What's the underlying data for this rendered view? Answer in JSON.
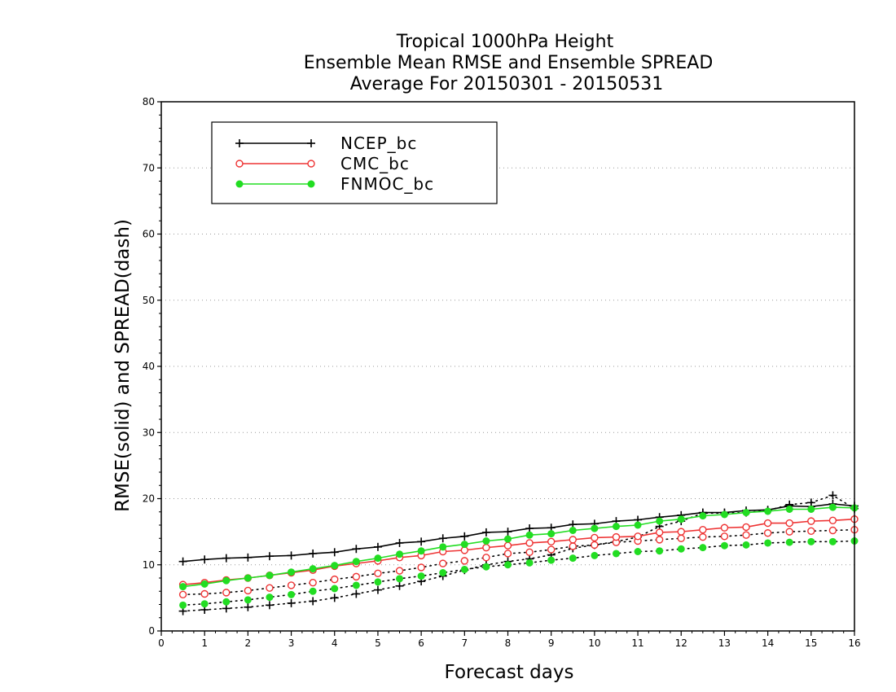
{
  "chart_data": {
    "type": "line",
    "title": [
      "Tropical 1000hPa Height",
      "Ensemble Mean RMSE and Ensemble SPREAD",
      "Average For 20150301 - 20150531"
    ],
    "xlabel": "Forecast days",
    "ylabel": "RMSE(solid) and SPREAD(dash)",
    "xlim": [
      0,
      16
    ],
    "ylim": [
      0,
      80
    ],
    "xticks": [
      "0",
      "1",
      "2",
      "3",
      "4",
      "5",
      "6",
      "7",
      "8",
      "9",
      "10",
      "11",
      "12",
      "13",
      "14",
      "15",
      "16"
    ],
    "yticks": [
      "0",
      "10",
      "20",
      "30",
      "40",
      "50",
      "60",
      "70",
      "80"
    ],
    "grid": "horizontal dotted",
    "legend_position": "top-left",
    "x": [
      0.5,
      1,
      1.5,
      2,
      2.5,
      3,
      3.5,
      4,
      4.5,
      5,
      5.5,
      6,
      6.5,
      7,
      7.5,
      8,
      8.5,
      9,
      9.5,
      10,
      10.5,
      11,
      11.5,
      12,
      12.5,
      13,
      13.5,
      14,
      14.5,
      15,
      15.5,
      16
    ],
    "series": [
      {
        "name": "NCEP_bc",
        "color": "#000000",
        "marker": "plus",
        "rmse": [
          10.5,
          10.8,
          11.0,
          11.1,
          11.3,
          11.4,
          11.7,
          11.9,
          12.4,
          12.7,
          13.3,
          13.5,
          14.0,
          14.3,
          14.9,
          15.0,
          15.5,
          15.6,
          16.1,
          16.2,
          16.6,
          16.8,
          17.2,
          17.5,
          17.9,
          17.9,
          18.2,
          18.3,
          18.9,
          18.8,
          19.2,
          18.9
        ],
        "spread": [
          3.0,
          3.2,
          3.4,
          3.6,
          3.9,
          4.2,
          4.5,
          5.0,
          5.6,
          6.2,
          6.8,
          7.5,
          8.3,
          9.2,
          10.0,
          10.5,
          10.9,
          11.5,
          12.5,
          13.0,
          13.5,
          14.2,
          15.8,
          16.6,
          17.8,
          17.8,
          17.9,
          18.2,
          19.1,
          19.4,
          20.5,
          18.5
        ]
      },
      {
        "name": "CMC_bc",
        "color": "#ee3333",
        "marker": "open-circle",
        "rmse": [
          7.0,
          7.3,
          7.7,
          8.0,
          8.4,
          8.8,
          9.2,
          9.8,
          10.2,
          10.6,
          11.1,
          11.4,
          12.0,
          12.2,
          12.6,
          12.9,
          13.3,
          13.5,
          13.8,
          14.1,
          14.2,
          14.3,
          14.9,
          15.0,
          15.3,
          15.6,
          15.7,
          16.3,
          16.3,
          16.6,
          16.7,
          16.9
        ],
        "spread": [
          5.5,
          5.6,
          5.8,
          6.1,
          6.5,
          6.9,
          7.3,
          7.8,
          8.2,
          8.7,
          9.1,
          9.6,
          10.2,
          10.6,
          11.1,
          11.7,
          11.9,
          12.3,
          12.8,
          13.0,
          13.4,
          13.6,
          13.8,
          14.0,
          14.2,
          14.3,
          14.5,
          14.8,
          15.0,
          15.1,
          15.2,
          15.3
        ]
      },
      {
        "name": "FNMOC_bc",
        "color": "#22dd22",
        "marker": "filled-circle",
        "rmse": [
          6.7,
          7.1,
          7.6,
          8.0,
          8.4,
          8.9,
          9.4,
          9.9,
          10.5,
          11.0,
          11.6,
          12.1,
          12.7,
          13.1,
          13.6,
          13.9,
          14.5,
          14.7,
          15.2,
          15.5,
          15.8,
          16.0,
          16.6,
          16.9,
          17.4,
          17.6,
          17.9,
          18.1,
          18.4,
          18.4,
          18.7,
          18.6
        ],
        "spread": [
          3.9,
          4.1,
          4.4,
          4.7,
          5.1,
          5.5,
          6.0,
          6.4,
          6.9,
          7.4,
          7.9,
          8.3,
          8.8,
          9.3,
          9.7,
          10.0,
          10.3,
          10.7,
          11.0,
          11.4,
          11.7,
          12.0,
          12.1,
          12.4,
          12.6,
          12.9,
          13.0,
          13.3,
          13.4,
          13.5,
          13.5,
          13.6
        ]
      }
    ]
  }
}
